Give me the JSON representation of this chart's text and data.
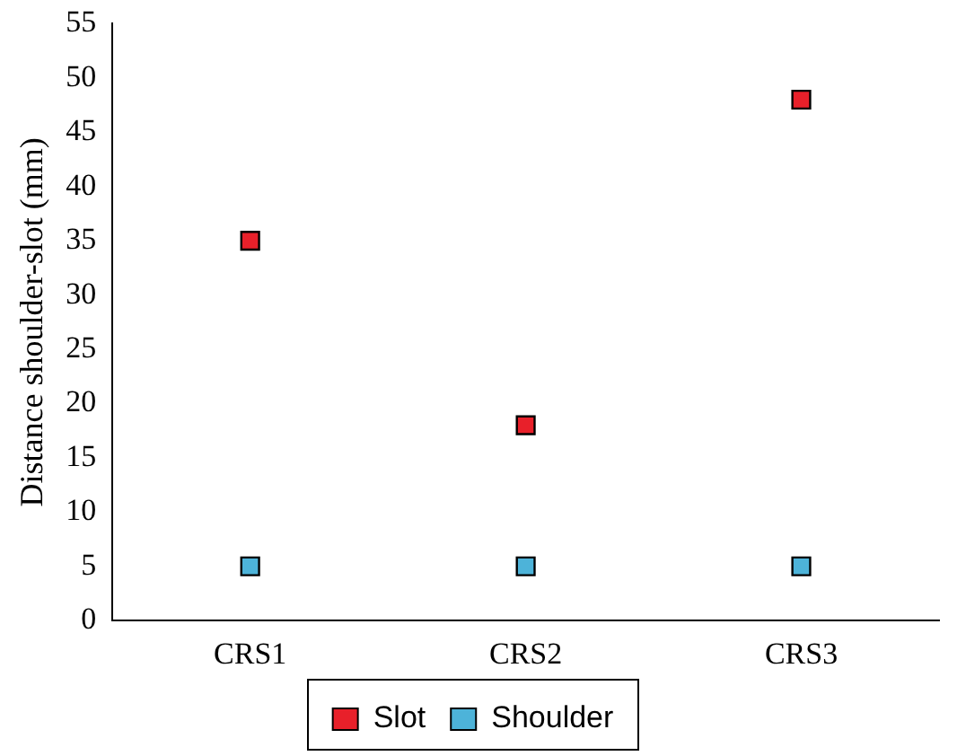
{
  "chart_data": {
    "type": "scatter",
    "ylabel": "Distance shoulder-slot (mm)",
    "categories": [
      "CRS1",
      "CRS2",
      "CRS3"
    ],
    "series": [
      {
        "name": "Slot",
        "color": "#e8202a",
        "values": [
          35,
          18,
          48
        ]
      },
      {
        "name": "Shoulder",
        "color": "#4db3d9",
        "values": [
          5,
          5,
          5
        ]
      }
    ],
    "ylim": [
      0,
      55
    ],
    "yticks": [
      0,
      5,
      10,
      15,
      20,
      25,
      30,
      35,
      40,
      45,
      50,
      55
    ],
    "grid": false,
    "legend": "bottom",
    "marker": "square"
  }
}
